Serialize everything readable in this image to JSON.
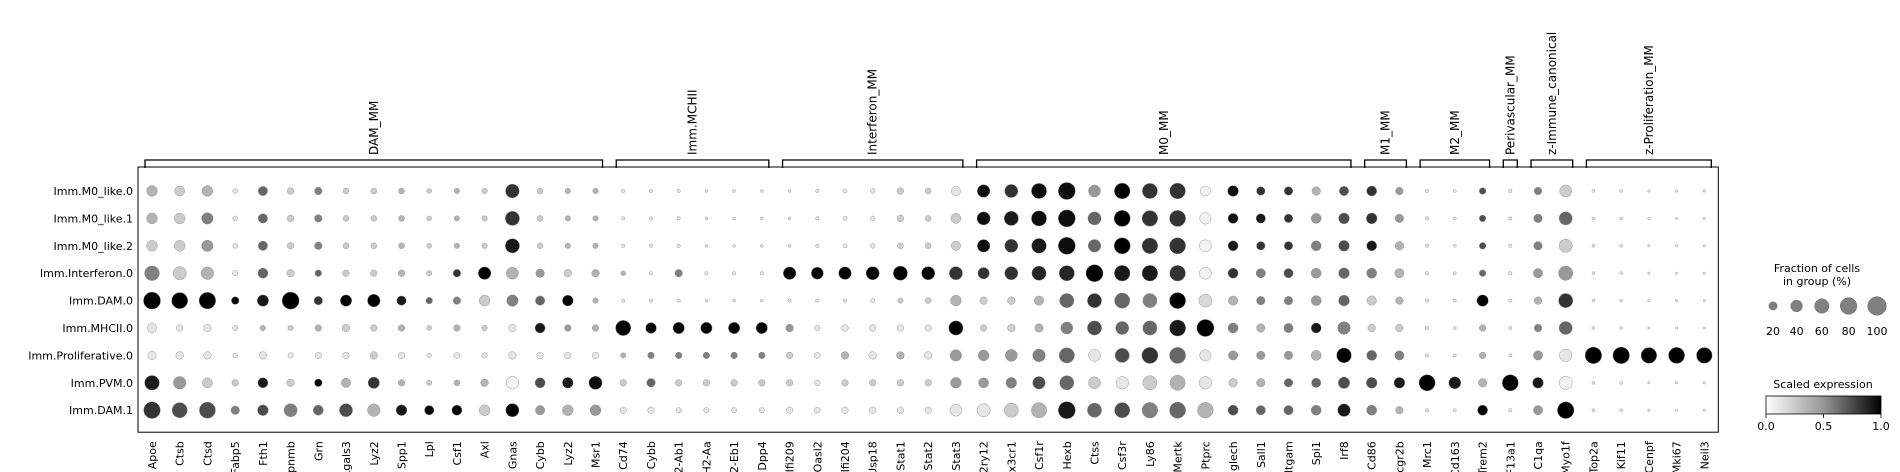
{
  "chart_data": {
    "type": "dotplot",
    "genes": [
      "Apoe",
      "Ctsb",
      "Ctsd",
      "Fabp5",
      "Fth1",
      "Gpnmb",
      "Grn",
      "Lgals3",
      "Lyz2",
      "Spp1",
      "Lpl",
      "Csf1",
      "Axl",
      "Gnas",
      "Cybb",
      "Lyz2",
      "Msr1",
      "Cd74",
      "Cybb",
      "H2-Ab1",
      "H2-Aa",
      "H2-Eb1",
      "Dpp4",
      "Ifi209",
      "Oasl2",
      "Ifi204",
      "Usp18",
      "Stat1",
      "Stat2",
      "Stat3",
      "P2ry12",
      "Cx3cr1",
      "Csf1r",
      "Hexb",
      "Ctss",
      "Csf3r",
      "Ly86",
      "Mertk",
      "Ptprc",
      "Siglech",
      "Sall1",
      "Itgam",
      "Spi1",
      "Irf8",
      "Cd86",
      "Fcgr2b",
      "Mrc1",
      "Cd163",
      "Trem2",
      "F13a1",
      "C1qa",
      "Myo1f",
      "Top2a",
      "Kif11",
      "Cenpf",
      "Mki67",
      "Neil3"
    ],
    "groups": [
      "Imm.M0_like.0",
      "Imm.M0_like.1",
      "Imm.M0_like.2",
      "Imm.Interferon.0",
      "Imm.DAM.0",
      "Imm.MHCII.0",
      "Imm.Proliferative.0",
      "Imm.PVM.0",
      "Imm.DAM.1"
    ],
    "gene_sets": [
      {
        "label": "DAM_MM",
        "start": 0,
        "end": 16
      },
      {
        "label": "Imm.MCHII",
        "start": 17,
        "end": 22
      },
      {
        "label": "Interferon_MM",
        "start": 23,
        "end": 29
      },
      {
        "label": "M0_MM",
        "start": 30,
        "end": 43
      },
      {
        "label": "M1_MM",
        "start": 44,
        "end": 45
      },
      {
        "label": "M2_MM",
        "start": 46,
        "end": 48
      },
      {
        "label": "Perivascular_MM",
        "start": 49,
        "end": 49
      },
      {
        "label": "z-Immune_canonical",
        "start": 50,
        "end": 51
      },
      {
        "label": "z-Proliferation_MM",
        "start": 52,
        "end": 56
      }
    ],
    "fraction": [
      [
        40,
        35,
        40,
        8,
        30,
        15,
        20,
        12,
        12,
        12,
        8,
        10,
        10,
        65,
        12,
        10,
        10,
        4,
        4,
        4,
        3,
        3,
        3,
        3,
        4,
        6,
        8,
        15,
        12,
        30,
        55,
        60,
        80,
        100,
        50,
        85,
        80,
        85,
        35,
        40,
        25,
        25,
        25,
        30,
        35,
        20,
        4,
        3,
        15,
        4,
        20,
        50,
        3,
        3,
        2,
        2,
        2
      ],
      [
        40,
        40,
        45,
        8,
        30,
        15,
        20,
        12,
        12,
        12,
        8,
        10,
        10,
        70,
        12,
        10,
        10,
        4,
        4,
        4,
        3,
        3,
        3,
        3,
        4,
        6,
        8,
        15,
        12,
        35,
        60,
        70,
        80,
        100,
        60,
        90,
        85,
        90,
        45,
        35,
        30,
        25,
        35,
        40,
        40,
        25,
        4,
        3,
        15,
        4,
        25,
        60,
        3,
        3,
        2,
        2,
        2
      ],
      [
        40,
        40,
        45,
        8,
        30,
        15,
        20,
        12,
        12,
        12,
        8,
        10,
        10,
        70,
        12,
        10,
        10,
        4,
        4,
        4,
        3,
        3,
        3,
        3,
        4,
        6,
        8,
        12,
        12,
        30,
        55,
        60,
        75,
        100,
        55,
        90,
        85,
        90,
        50,
        35,
        25,
        25,
        35,
        40,
        35,
        25,
        4,
        3,
        15,
        4,
        25,
        60,
        3,
        3,
        2,
        2,
        2
      ],
      [
        75,
        60,
        55,
        10,
        35,
        20,
        15,
        15,
        15,
        15,
        10,
        20,
        55,
        50,
        25,
        20,
        20,
        8,
        4,
        20,
        4,
        4,
        4,
        55,
        50,
        55,
        60,
        70,
        60,
        60,
        45,
        60,
        70,
        80,
        100,
        85,
        85,
        85,
        50,
        35,
        30,
        30,
        35,
        40,
        35,
        30,
        4,
        3,
        15,
        4,
        30,
        70,
        3,
        3,
        2,
        2,
        2
      ],
      [
        100,
        90,
        95,
        20,
        45,
        100,
        25,
        45,
        55,
        30,
        15,
        20,
        40,
        45,
        30,
        40,
        10,
        4,
        4,
        4,
        3,
        3,
        3,
        4,
        4,
        4,
        6,
        10,
        12,
        40,
        20,
        20,
        30,
        70,
        70,
        80,
        70,
        90,
        60,
        30,
        25,
        25,
        35,
        40,
        30,
        20,
        4,
        3,
        45,
        4,
        20,
        70,
        3,
        3,
        2,
        2,
        2
      ],
      [
        30,
        15,
        20,
        10,
        10,
        10,
        15,
        20,
        15,
        15,
        8,
        15,
        10,
        20,
        35,
        15,
        15,
        80,
        40,
        45,
        45,
        45,
        45,
        20,
        10,
        15,
        15,
        15,
        15,
        70,
        15,
        20,
        25,
        50,
        70,
        60,
        70,
        90,
        100,
        35,
        25,
        30,
        35,
        55,
        20,
        20,
        4,
        3,
        15,
        4,
        20,
        60,
        3,
        3,
        2,
        2,
        2
      ],
      [
        25,
        20,
        20,
        8,
        20,
        10,
        15,
        15,
        20,
        15,
        8,
        12,
        10,
        20,
        15,
        15,
        15,
        10,
        15,
        15,
        15,
        15,
        15,
        15,
        12,
        20,
        20,
        20,
        20,
        45,
        40,
        50,
        55,
        80,
        50,
        70,
        90,
        90,
        45,
        30,
        25,
        25,
        35,
        75,
        35,
        30,
        4,
        3,
        15,
        4,
        30,
        55,
        95,
        95,
        85,
        90,
        85
      ],
      [
        75,
        55,
        35,
        15,
        35,
        20,
        20,
        30,
        45,
        15,
        10,
        12,
        20,
        55,
        35,
        40,
        60,
        15,
        25,
        15,
        15,
        15,
        15,
        15,
        12,
        15,
        15,
        15,
        15,
        40,
        35,
        40,
        55,
        70,
        50,
        55,
        70,
        80,
        55,
        25,
        25,
        25,
        30,
        45,
        40,
        40,
        90,
        50,
        25,
        90,
        40,
        60,
        3,
        3,
        2,
        2,
        2
      ],
      [
        95,
        80,
        90,
        25,
        40,
        60,
        35,
        60,
        55,
        40,
        30,
        35,
        40,
        60,
        30,
        40,
        40,
        15,
        15,
        10,
        10,
        10,
        10,
        15,
        12,
        15,
        15,
        15,
        15,
        50,
        60,
        70,
        80,
        100,
        70,
        80,
        85,
        90,
        85,
        35,
        30,
        30,
        35,
        55,
        35,
        20,
        4,
        3,
        35,
        4,
        30,
        95,
        3,
        3,
        2,
        2,
        2
      ]
    ],
    "expression": [
      [
        0.3,
        0.2,
        0.3,
        0.1,
        0.6,
        0.2,
        0.5,
        0.2,
        0.2,
        0.3,
        0.2,
        0.3,
        0.2,
        0.8,
        0.2,
        0.3,
        0.3,
        0.1,
        0.1,
        0.1,
        0.1,
        0.1,
        0.1,
        0.1,
        0.1,
        0.1,
        0.1,
        0.2,
        0.2,
        0.1,
        0.95,
        0.8,
        0.95,
        0.95,
        0.4,
        1.0,
        0.8,
        0.8,
        0.05,
        0.95,
        0.8,
        0.8,
        0.3,
        0.7,
        0.8,
        0.4,
        0.1,
        0.1,
        0.7,
        0.1,
        0.5,
        0.2,
        0.1,
        0.1,
        0.1,
        0.1,
        0.1
      ],
      [
        0.3,
        0.2,
        0.5,
        0.1,
        0.6,
        0.2,
        0.5,
        0.2,
        0.2,
        0.3,
        0.2,
        0.3,
        0.2,
        0.8,
        0.2,
        0.3,
        0.3,
        0.1,
        0.1,
        0.1,
        0.1,
        0.1,
        0.1,
        0.1,
        0.1,
        0.1,
        0.1,
        0.2,
        0.2,
        0.2,
        0.95,
        0.9,
        0.95,
        0.95,
        0.6,
        1.0,
        0.8,
        0.8,
        0.05,
        0.95,
        0.9,
        0.8,
        0.4,
        0.7,
        0.8,
        0.4,
        0.1,
        0.1,
        0.7,
        0.1,
        0.5,
        0.6,
        0.1,
        0.1,
        0.1,
        0.1,
        0.1
      ],
      [
        0.2,
        0.2,
        0.4,
        0.1,
        0.6,
        0.2,
        0.5,
        0.2,
        0.2,
        0.3,
        0.2,
        0.3,
        0.2,
        0.9,
        0.2,
        0.3,
        0.3,
        0.1,
        0.1,
        0.1,
        0.1,
        0.1,
        0.1,
        0.1,
        0.1,
        0.1,
        0.1,
        0.2,
        0.2,
        0.2,
        0.95,
        0.8,
        0.9,
        0.95,
        0.6,
        1.0,
        0.8,
        0.8,
        0.05,
        0.9,
        0.8,
        0.8,
        0.5,
        0.7,
        0.9,
        0.3,
        0.1,
        0.1,
        0.7,
        0.1,
        0.5,
        0.2,
        0.1,
        0.1,
        0.1,
        0.1,
        0.1
      ],
      [
        0.5,
        0.2,
        0.3,
        0.1,
        0.6,
        0.2,
        0.6,
        0.2,
        0.2,
        0.3,
        0.2,
        0.8,
        1.0,
        0.3,
        0.4,
        0.2,
        0.3,
        0.3,
        0.1,
        0.5,
        0.1,
        0.1,
        0.1,
        1.0,
        1.0,
        1.0,
        1.0,
        1.0,
        1.0,
        0.8,
        0.8,
        0.8,
        0.85,
        0.85,
        1.0,
        0.9,
        0.9,
        0.8,
        0.05,
        0.8,
        0.5,
        0.7,
        0.4,
        0.6,
        0.5,
        0.3,
        0.1,
        0.1,
        0.6,
        0.1,
        0.4,
        0.4,
        0.1,
        0.1,
        0.1,
        0.1,
        0.1
      ],
      [
        1.0,
        1.0,
        1.0,
        1.0,
        0.9,
        1.0,
        0.8,
        1.0,
        1.0,
        0.9,
        0.6,
        0.5,
        0.2,
        0.5,
        0.6,
        1.0,
        0.3,
        0.1,
        0.1,
        0.1,
        0.1,
        0.1,
        0.1,
        0.1,
        0.1,
        0.1,
        0.1,
        0.2,
        0.2,
        0.3,
        0.2,
        0.2,
        0.3,
        0.6,
        0.8,
        0.6,
        0.5,
        1.0,
        0.15,
        0.3,
        0.5,
        0.5,
        0.4,
        0.6,
        0.2,
        0.3,
        0.1,
        0.1,
        1.0,
        0.1,
        0.3,
        0.8,
        0.1,
        0.1,
        0.1,
        0.1,
        0.1
      ],
      [
        0.1,
        0.1,
        0.1,
        0.1,
        0.3,
        0.2,
        0.3,
        0.2,
        0.2,
        0.3,
        0.2,
        0.3,
        0.2,
        0.1,
        0.9,
        0.4,
        0.3,
        1.0,
        1.0,
        1.0,
        1.0,
        1.0,
        1.0,
        0.4,
        0.1,
        0.1,
        0.1,
        0.1,
        0.1,
        1.0,
        0.2,
        0.2,
        0.3,
        0.5,
        0.7,
        0.6,
        0.6,
        0.9,
        1.0,
        0.5,
        0.3,
        0.5,
        0.9,
        0.5,
        0.2,
        0.2,
        0.1,
        0.1,
        0.3,
        0.1,
        0.5,
        0.6,
        0.1,
        0.1,
        0.1,
        0.1,
        0.1
      ],
      [
        0.1,
        0.1,
        0.1,
        0.1,
        0.1,
        0.1,
        0.1,
        0.1,
        0.2,
        0.1,
        0.1,
        0.1,
        0.1,
        0.1,
        0.1,
        0.1,
        0.1,
        0.3,
        0.5,
        0.5,
        0.5,
        0.5,
        0.5,
        0.2,
        0.1,
        0.3,
        0.1,
        0.3,
        0.1,
        0.4,
        0.4,
        0.4,
        0.5,
        0.6,
        0.1,
        0.7,
        0.8,
        0.6,
        0.1,
        0.4,
        0.4,
        0.4,
        0.3,
        1.0,
        0.6,
        0.5,
        0.1,
        0.1,
        0.3,
        0.1,
        0.4,
        0.1,
        1.0,
        1.0,
        1.0,
        1.0,
        1.0
      ],
      [
        0.9,
        0.4,
        0.2,
        0.2,
        0.9,
        0.2,
        1.0,
        0.3,
        0.8,
        0.3,
        0.2,
        0.3,
        0.3,
        0.05,
        0.7,
        0.9,
        0.95,
        0.2,
        0.6,
        0.2,
        0.2,
        0.2,
        0.2,
        0.2,
        0.1,
        0.2,
        0.2,
        0.2,
        0.2,
        0.4,
        0.4,
        0.5,
        0.7,
        0.6,
        0.2,
        0.1,
        0.2,
        0.3,
        0.1,
        0.2,
        0.3,
        0.6,
        0.6,
        0.7,
        0.7,
        0.9,
        1.0,
        0.9,
        0.3,
        1.0,
        0.9,
        0.05,
        0.1,
        0.1,
        0.1,
        0.1,
        0.1
      ],
      [
        0.8,
        0.7,
        0.7,
        0.5,
        0.7,
        0.5,
        0.6,
        0.7,
        0.3,
        0.9,
        1.0,
        1.0,
        0.2,
        1.0,
        0.4,
        0.3,
        0.4,
        0.1,
        0.1,
        0.1,
        0.1,
        0.1,
        0.1,
        0.1,
        0.1,
        0.1,
        0.1,
        0.1,
        0.1,
        0.1,
        0.1,
        0.2,
        0.3,
        0.9,
        0.6,
        0.7,
        0.5,
        0.6,
        0.3,
        0.7,
        0.6,
        0.6,
        0.5,
        0.9,
        0.5,
        0.3,
        0.1,
        0.1,
        1.0,
        0.1,
        0.4,
        1.0,
        0.1,
        0.1,
        0.1,
        0.1,
        0.1
      ]
    ],
    "size_legend": {
      "title_line1": "Fraction of cells",
      "title_line2": "in group (%)",
      "ticks": [
        20,
        40,
        60,
        80,
        100
      ]
    },
    "color_legend": {
      "title": "Scaled expression",
      "range": [
        0,
        1
      ],
      "ticks": [
        "0.0",
        "0.5",
        "1.0"
      ]
    },
    "colors": {
      "low": "#ffffff",
      "high": "#000000",
      "edge": "#808080"
    }
  }
}
